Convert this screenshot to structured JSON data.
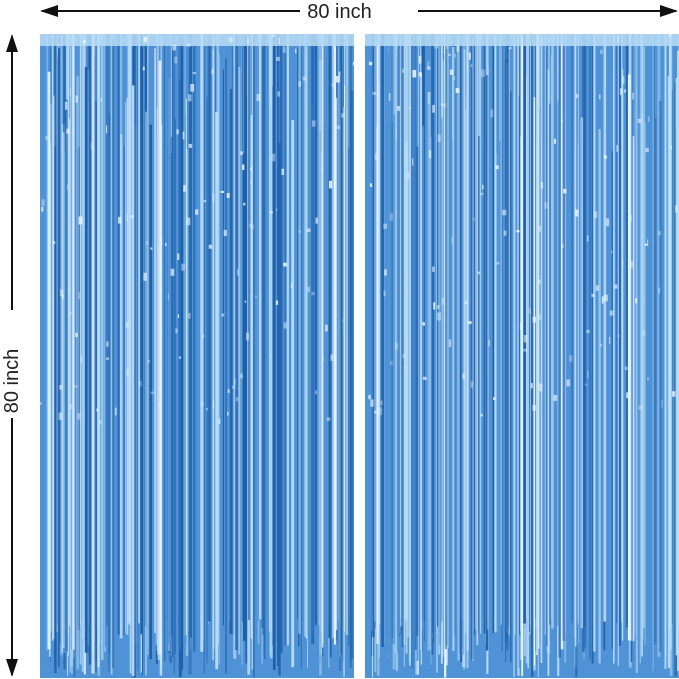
{
  "dimensions": {
    "width_label": "80 inch",
    "height_label": "80 inch"
  },
  "colors": {
    "curtain_base": "#4f93d6",
    "curtain_dark": "#1f5fa8",
    "curtain_light": "#b9dcf6",
    "curtain_highlight": "#e6f4ff",
    "arrow": "#111111"
  },
  "curtains": [
    {
      "name": "left-fringe-curtain"
    },
    {
      "name": "right-fringe-curtain"
    }
  ]
}
